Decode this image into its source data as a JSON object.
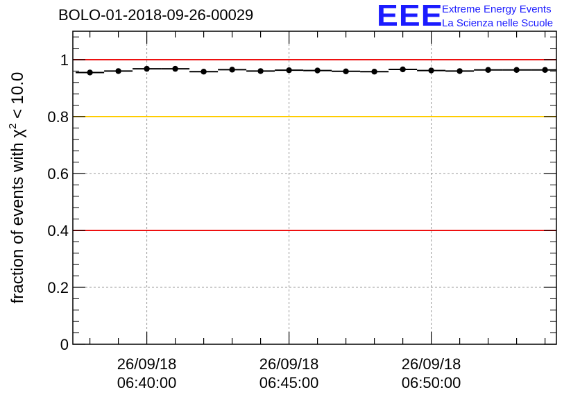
{
  "title": "BOLO-01-2018-09-26-00029",
  "logo": {
    "mark": "EEE",
    "line1": "Extreme Energy Events",
    "line2": "La Scienza nelle Scuole",
    "color": "#1b1bff"
  },
  "chart_data": {
    "type": "scatter",
    "title": "BOLO-01-2018-09-26-00029",
    "ylabel": "fraction of events with χ² < 10.0",
    "ylabel_parts": {
      "base": "fraction of events with ",
      "symbol": "χ",
      "sup": "2",
      "rest": " < 10.0"
    },
    "ylim": [
      0,
      1.1
    ],
    "xlim_minutes": [
      -2.6,
      14.4
    ],
    "y_ticks": [
      "0",
      "0.2",
      "0.4",
      "0.6",
      "0.8",
      "1"
    ],
    "y_tick_values": [
      0,
      0.2,
      0.4,
      0.6,
      0.8,
      1
    ],
    "x_tick_labels": [
      {
        "minutes": 0,
        "date": "26/09/18",
        "time": "06:40:00"
      },
      {
        "minutes": 5,
        "date": "26/09/18",
        "time": "06:45:00"
      },
      {
        "minutes": 10,
        "date": "26/09/18",
        "time": "06:50:00"
      }
    ],
    "grid": true,
    "reference_lines": [
      {
        "y": 1.0,
        "color": "#ee1111"
      },
      {
        "y": 0.8,
        "color": "#ffcc00"
      },
      {
        "y": 0.4,
        "color": "#ee1111"
      }
    ],
    "bin_width_minutes": 1,
    "points": [
      {
        "x": -2.0,
        "y": 0.955
      },
      {
        "x": -1.0,
        "y": 0.96
      },
      {
        "x": 0.0,
        "y": 0.968
      },
      {
        "x": 1.0,
        "y": 0.968
      },
      {
        "x": 2.0,
        "y": 0.958
      },
      {
        "x": 3.0,
        "y": 0.965
      },
      {
        "x": 4.0,
        "y": 0.96
      },
      {
        "x": 5.0,
        "y": 0.963
      },
      {
        "x": 6.0,
        "y": 0.962
      },
      {
        "x": 7.0,
        "y": 0.959
      },
      {
        "x": 8.0,
        "y": 0.958
      },
      {
        "x": 9.0,
        "y": 0.966
      },
      {
        "x": 10.0,
        "y": 0.962
      },
      {
        "x": 11.0,
        "y": 0.96
      },
      {
        "x": 12.0,
        "y": 0.964
      },
      {
        "x": 13.0,
        "y": 0.964
      },
      {
        "x": 14.0,
        "y": 0.964
      }
    ]
  }
}
